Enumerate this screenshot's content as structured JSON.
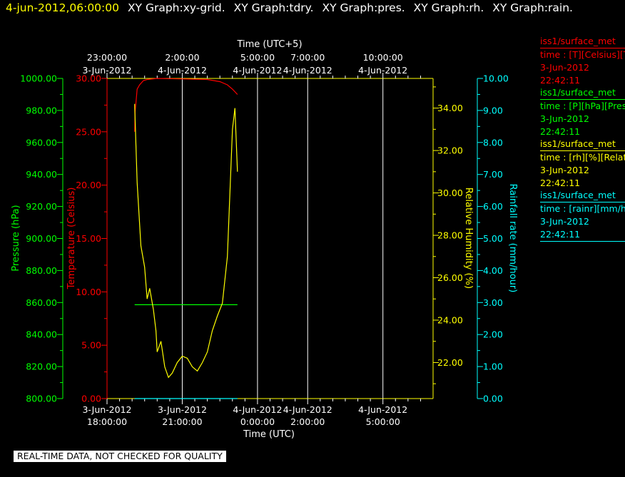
{
  "header": {
    "date": "4-jun-2012,06:00:00",
    "graphs": [
      "XY Graph:xy-grid.",
      "XY Graph:tdry.",
      "XY Graph:pres.",
      "XY Graph:rh.",
      "XY Graph:rain."
    ]
  },
  "colors": {
    "temperature": "#ff0000",
    "pressure": "#00ff00",
    "humidity": "#ffff00",
    "rain": "#00ffff",
    "grid": "#ffffff",
    "background": "#000000"
  },
  "chart_data": {
    "type": "line",
    "xlabel_bottom": "Time (UTC)",
    "xlabel_top": "Time (UTC+5)",
    "x_axis_hours_since_2012_06_03_18_00": [
      0,
      13
    ],
    "bottom_ticks": [
      {
        "time": "18:00:00",
        "date": "3-Jun-2012",
        "at": "2012-06-03 18:00"
      },
      {
        "time": "21:00:00",
        "date": "3-Jun-2012",
        "at": "2012-06-03 21:00"
      },
      {
        "time": "0:00:00",
        "date": "4-Jun-2012",
        "at": "2012-06-04 00:00"
      },
      {
        "time": "2:00:00",
        "date": "4-Jun-2012",
        "at": "2012-06-04 02:00"
      },
      {
        "time": "5:00:00",
        "date": "4-Jun-2012",
        "at": "2012-06-04 05:00"
      }
    ],
    "top_ticks": [
      {
        "time": "23:00:00",
        "date": "3-Jun-2012"
      },
      {
        "time": "2:00:00",
        "date": "4-Jun-2012"
      },
      {
        "time": "5:00:00",
        "date": "4-Jun-2012"
      },
      {
        "time": "7:00:00",
        "date": "4-Jun-2012"
      },
      {
        "time": "10:00:00",
        "date": "4-Jun-2012"
      }
    ],
    "axes": {
      "pressure": {
        "label": "Pressure (hPa)",
        "range": [
          800,
          1000
        ],
        "ticks": [
          "800.00",
          "820.00",
          "840.00",
          "860.00",
          "880.00",
          "900.00",
          "920.00",
          "940.00",
          "960.00",
          "980.00",
          "1000.00"
        ]
      },
      "temperature": {
        "label": "Temperature (Celsius)",
        "range": [
          0,
          30
        ],
        "ticks": [
          "0.00",
          "5.00",
          "10.00",
          "15.00",
          "20.00",
          "25.00",
          "30.00"
        ]
      },
      "humidity": {
        "label": "Relative Humidity (%)",
        "range": [
          20.3,
          35.4
        ],
        "ticks": [
          "22.00",
          "24.00",
          "26.00",
          "28.00",
          "30.00",
          "32.00",
          "34.00"
        ]
      },
      "rain": {
        "label": "Rainfall rate (mm/hour)",
        "range": [
          0,
          10
        ],
        "ticks": [
          "0.00",
          "1.00",
          "2.00",
          "3.00",
          "4.00",
          "5.00",
          "6.00",
          "7.00",
          "8.00",
          "9.00",
          "10.00"
        ]
      }
    },
    "series": [
      {
        "name": "iss1/surface_met",
        "field": "time : [T][Celsius][Temperature]",
        "axis": "temperature",
        "points": [
          [
            1.1,
            25.0
          ],
          [
            1.12,
            26.9
          ],
          [
            1.15,
            27.6
          ],
          [
            1.2,
            29.0
          ],
          [
            1.3,
            29.4
          ],
          [
            1.45,
            29.8
          ],
          [
            1.6,
            29.9
          ],
          [
            2.0,
            30.0
          ],
          [
            3.0,
            29.95
          ],
          [
            4.0,
            29.9
          ],
          [
            4.5,
            29.7
          ],
          [
            4.8,
            29.4
          ],
          [
            5.0,
            29.0
          ],
          [
            5.2,
            28.5
          ]
        ]
      },
      {
        "name": "iss1/surface_met",
        "field": "time : [P][hPa][Pressure]",
        "axis": "pressure",
        "points": [
          [
            1.1,
            858.6
          ],
          [
            3.0,
            858.6
          ],
          [
            5.2,
            858.6
          ]
        ]
      },
      {
        "name": "iss1/surface_met",
        "field": "time : [rh][%][Relative Humidity]",
        "axis": "humidity",
        "points": [
          [
            1.1,
            34.2
          ],
          [
            1.2,
            30.5
          ],
          [
            1.35,
            27.5
          ],
          [
            1.5,
            26.5
          ],
          [
            1.6,
            25.0
          ],
          [
            1.7,
            25.5
          ],
          [
            1.85,
            24.5
          ],
          [
            1.95,
            23.5
          ],
          [
            2.0,
            22.5
          ],
          [
            2.15,
            23.0
          ],
          [
            2.3,
            21.8
          ],
          [
            2.45,
            21.3
          ],
          [
            2.6,
            21.5
          ],
          [
            2.8,
            22.0
          ],
          [
            3.0,
            22.3
          ],
          [
            3.2,
            22.2
          ],
          [
            3.4,
            21.8
          ],
          [
            3.6,
            21.6
          ],
          [
            3.8,
            22.0
          ],
          [
            4.0,
            22.5
          ],
          [
            4.2,
            23.5
          ],
          [
            4.4,
            24.2
          ],
          [
            4.6,
            24.8
          ],
          [
            4.8,
            27.0
          ],
          [
            5.0,
            33.0
          ],
          [
            5.1,
            34.0
          ],
          [
            5.2,
            31.0
          ]
        ]
      },
      {
        "name": "iss1/surface_met",
        "field": "time : [rainr][mm/hour][Rainfall rate]",
        "axis": "rain",
        "points": [
          [
            1.1,
            0.0
          ],
          [
            3.0,
            0.0
          ],
          [
            5.2,
            0.0
          ]
        ]
      }
    ],
    "legend": [
      {
        "title": "iss1/surface_met",
        "field": "time : [T][Celsius][Temperature]",
        "date": "3-Jun-2012",
        "time": "22:42:11"
      },
      {
        "title": "iss1/surface_met",
        "field": "time : [P][hPa][Pressure]",
        "date": "3-Jun-2012",
        "time": "22:42:11"
      },
      {
        "title": "iss1/surface_met",
        "field": "time : [rh][%][Relative Humidity]",
        "date": "3-Jun-2012",
        "time": "22:42:11"
      },
      {
        "title": "iss1/surface_met",
        "field": "time : [rainr][mm/hour][Rainfall rate]",
        "date": "3-Jun-2012",
        "time": "22:42:11"
      }
    ],
    "grid": true,
    "legend_placement": "right"
  },
  "footer": {
    "quality_note": "REAL-TIME DATA, NOT CHECKED FOR QUALITY"
  }
}
